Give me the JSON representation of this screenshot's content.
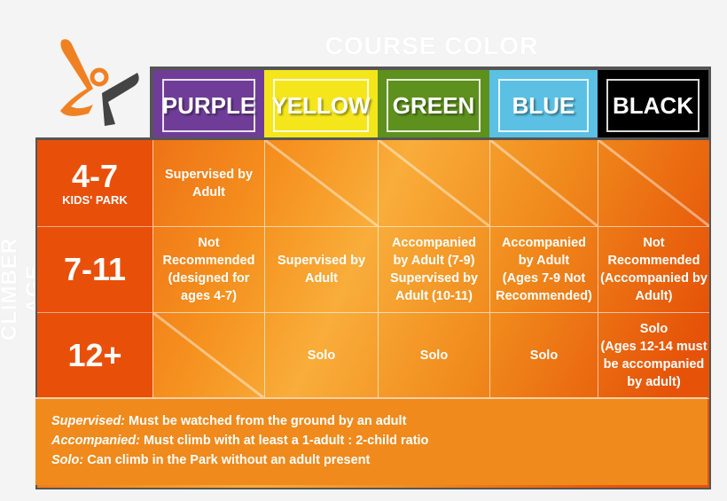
{
  "headers": {
    "course": "COURSE COLOR",
    "age": "CLIMBER AGE"
  },
  "colors": [
    {
      "label": "PURPLE",
      "hex": "#6f3d98"
    },
    {
      "label": "YELLOW",
      "hex": "#f5e61c"
    },
    {
      "label": "GREEN",
      "hex": "#5e901e"
    },
    {
      "label": "BLUE",
      "hex": "#5bc0e4"
    },
    {
      "label": "BLACK",
      "hex": "#000000"
    }
  ],
  "rows": [
    {
      "age": "4-7",
      "sub": "KIDS' PARK",
      "cells": [
        "Supervised by\nAdult",
        "",
        "",
        "",
        ""
      ]
    },
    {
      "age": "7-11",
      "sub": "",
      "cells": [
        "Not\nRecommended\n(designed for\nages 4-7)",
        "Supervised by\nAdult",
        "Accompanied\nby Adult (7-9)\nSupervised by\nAdult (10-11)",
        "Accompanied\nby Adult\n(Ages 7-9 Not\nRecommended)",
        "Not\nRecommended\n(Accompanied by\nAdult)"
      ]
    },
    {
      "age": "12+",
      "sub": "",
      "cells": [
        "",
        "Solo",
        "Solo",
        "Solo",
        "Solo\n(Ages 12-14 must\nbe accompanied\nby adult)"
      ]
    }
  ],
  "legend": [
    {
      "term": "Supervised:",
      "text": " Must be watched from the ground by an adult"
    },
    {
      "term": "Accompanied:",
      "text": " Must climb with at least a 1-adult : 2-child ratio"
    },
    {
      "term": "Solo:",
      "text": " Can climb in the Park without an adult present"
    }
  ]
}
